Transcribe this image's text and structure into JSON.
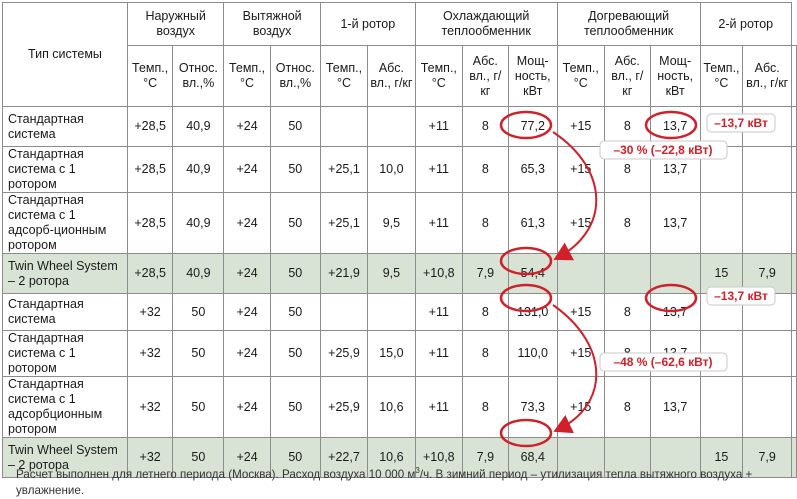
{
  "headers": {
    "system_type": "Тип системы",
    "groups": {
      "outside_air": "Наружный воздух",
      "exhaust_air": "Вытяжной воздух",
      "rotor1": "1-й ротор",
      "cooling_hx": "Охлаждающий теплообменник",
      "reheat_hx": "Догревающий теплообменник",
      "rotor2": "2-й ротор"
    },
    "sub": {
      "temp": "Темп., °С",
      "rel_hum": "Относ. вл.,%",
      "abs_hum": "Абс. вл., г/кг",
      "power": "Мощ-ность, кВт"
    }
  },
  "rows": [
    {
      "name": "Стандартная система",
      "cells": [
        "+28,5",
        "40,9",
        "+24",
        "50",
        "",
        "",
        "+11",
        "8",
        "77,2",
        "+15",
        "8",
        "13,7",
        "",
        ""
      ]
    },
    {
      "name": "Стандартная система с 1 ротором",
      "cells": [
        "+28,5",
        "40,9",
        "+24",
        "50",
        "+25,1",
        "10,0",
        "+11",
        "8",
        "65,3",
        "+15",
        "8",
        "13,7",
        "",
        ""
      ]
    },
    {
      "name": "Стандартная система с 1 адсорб-ционным ротором",
      "cells": [
        "+28,5",
        "40,9",
        "+24",
        "50",
        "+25,1",
        "9,5",
        "+11",
        "8",
        "61,3",
        "+15",
        "8",
        "13,7",
        "",
        ""
      ]
    },
    {
      "name": "Twin Wheel System – 2 ротора",
      "cells": [
        "+28,5",
        "40,9",
        "+24",
        "50",
        "+21,9",
        "9,5",
        "+10,8",
        "7,9",
        "54,4",
        "",
        "",
        "",
        "15",
        "7,9"
      ]
    },
    {
      "name": "Стандартная система",
      "cells": [
        "+32",
        "50",
        "+24",
        "50",
        "",
        "",
        "+11",
        "8",
        "131,0",
        "+15",
        "8",
        "13,7",
        "",
        ""
      ]
    },
    {
      "name": "Стандартная система с 1 ротором",
      "cells": [
        "+32",
        "50",
        "+24",
        "50",
        "+25,9",
        "15,0",
        "+11",
        "8",
        "110,0",
        "+15",
        "8",
        "13,7",
        "",
        ""
      ]
    },
    {
      "name": "Стандартная система с 1 адсорбционным ротором",
      "cells": [
        "+32",
        "50",
        "+24",
        "50",
        "+25,9",
        "10,6",
        "+11",
        "8",
        "73,3",
        "+15",
        "8",
        "13,7",
        "",
        ""
      ]
    },
    {
      "name": "Twin Wheel System – 2 ротора",
      "cells": [
        "+32",
        "50",
        "+24",
        "50",
        "+22,7",
        "10,6",
        "+10,8",
        "7,9",
        "68,4",
        "",
        "",
        "",
        "15",
        "7,9"
      ]
    }
  ],
  "annotations": {
    "reheat_saving_1": "–13,7 кВт",
    "cooling_saving_1": "–30 % (–22,8 кВт)",
    "reheat_saving_2": "–13,7 кВт",
    "cooling_saving_2": "–48 % (–62,6 кВт)"
  },
  "colors": {
    "accent": "#d0202a",
    "group_bg": "#d9e3d5",
    "border": "#8c8c8c"
  },
  "footnote": {
    "main": "Расчет выполнен для летнего периода (Москва). Расход воздуха 10 000 м",
    "sup": "3",
    "rest": "/ч. В зимний период – утилизация тепла вытяжного воздуха + увлажнение."
  }
}
